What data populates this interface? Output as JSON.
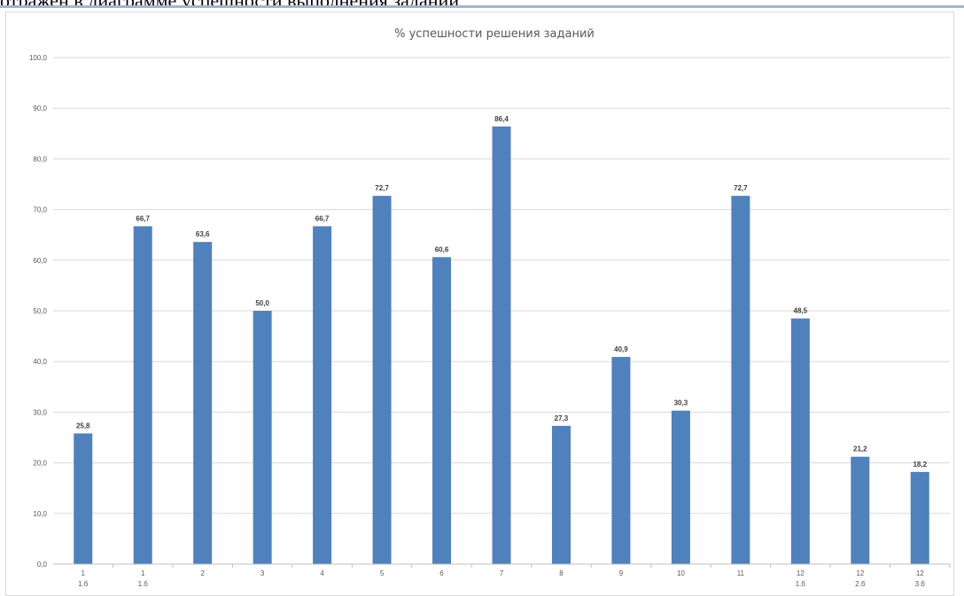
{
  "document": {
    "cut_text": "отражен в диаграмме успешности выполнения заданий"
  },
  "chart_data": {
    "type": "bar",
    "title": "% успешности решения заданий",
    "xlabel": "",
    "ylabel": "",
    "ylim": [
      0,
      100
    ],
    "yticks": [
      "0,0",
      "10,0",
      "20,0",
      "30,0",
      "40,0",
      "50,0",
      "60,0",
      "70,0",
      "80,0",
      "90,0",
      "100,0"
    ],
    "categories": [
      "1",
      "1",
      "2",
      "3",
      "4",
      "5",
      "6",
      "7",
      "8",
      "9",
      "10",
      "11",
      "12",
      "12",
      "12"
    ],
    "sub_labels": [
      "1.б",
      "1.б",
      "",
      "",
      "",
      "",
      "",
      "",
      "",
      "",
      "",
      "",
      "1.б",
      "2.б",
      "3.б"
    ],
    "values": [
      25.8,
      66.7,
      63.6,
      50.0,
      66.7,
      72.7,
      60.6,
      86.4,
      27.3,
      40.9,
      30.3,
      72.7,
      48.5,
      21.2,
      18.2
    ],
    "data_labels": [
      "25,8",
      "66,7",
      "63,6",
      "50,0",
      "66,7",
      "72,7",
      "60,6",
      "86,4",
      "27,3",
      "40,9",
      "30,3",
      "72,7",
      "48,5",
      "21,2",
      "18,2"
    ],
    "grid": true,
    "legend": "none",
    "colors": {
      "bar": "#4f81bd",
      "grid": "#d9d9d9",
      "axis": "#bfbfbf"
    }
  }
}
